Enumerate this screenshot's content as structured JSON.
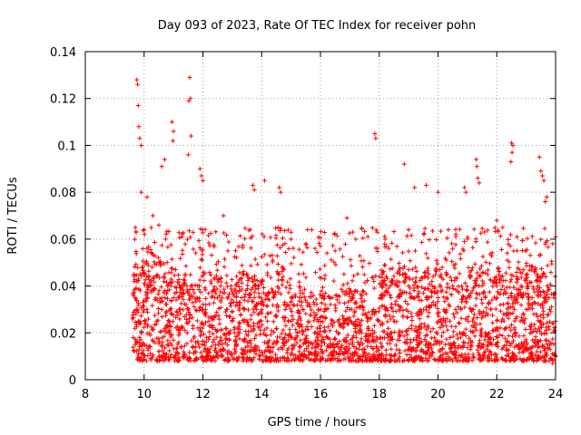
{
  "chart_data": {
    "type": "scatter",
    "title": "Day 093 of 2023, Rate Of TEC Index for receiver pohn",
    "xlabel": "GPS time / hours",
    "ylabel": "ROTI / TECUs",
    "xlim": [
      8,
      24
    ],
    "ylim": [
      0,
      0.14
    ],
    "x_ticks": [
      8,
      10,
      12,
      14,
      16,
      18,
      20,
      22,
      24
    ],
    "y_ticks": [
      0,
      0.02,
      0.04,
      0.06,
      0.08,
      0.1,
      0.12,
      0.14
    ],
    "x_tick_labels": [
      "8",
      "10",
      "12",
      "14",
      "16",
      "18",
      "20",
      "22",
      "24"
    ],
    "y_tick_labels": [
      "0",
      "0.02",
      "0.04",
      "0.06",
      "0.08",
      "0.1",
      "0.12",
      "0.14"
    ],
    "grid": true,
    "marker": "+",
    "color": "#ff0000",
    "series": [
      {
        "name": "ROTI",
        "note": "dense cloud of points from ~9.6 h to 24 h; values are approximations read from the axes",
        "points": [
          [
            9.75,
            0.128
          ],
          [
            9.78,
            0.126
          ],
          [
            9.8,
            0.117
          ],
          [
            9.85,
            0.103
          ],
          [
            9.9,
            0.1
          ],
          [
            9.82,
            0.108
          ],
          [
            11.55,
            0.129
          ],
          [
            11.52,
            0.119
          ],
          [
            11.58,
            0.12
          ],
          [
            11.6,
            0.104
          ],
          [
            11.5,
            0.096
          ],
          [
            10.95,
            0.11
          ],
          [
            11.0,
            0.106
          ],
          [
            10.98,
            0.102
          ],
          [
            10.7,
            0.094
          ],
          [
            10.6,
            0.091
          ],
          [
            17.85,
            0.105
          ],
          [
            17.88,
            0.103
          ],
          [
            18.85,
            0.092
          ],
          [
            22.5,
            0.101
          ],
          [
            22.55,
            0.1
          ],
          [
            22.52,
            0.097
          ],
          [
            22.48,
            0.093
          ],
          [
            23.45,
            0.095
          ],
          [
            21.3,
            0.094
          ],
          [
            21.32,
            0.091
          ],
          [
            21.35,
            0.086
          ],
          [
            21.4,
            0.084
          ],
          [
            11.9,
            0.09
          ],
          [
            11.95,
            0.087
          ],
          [
            12.0,
            0.085
          ],
          [
            14.1,
            0.085
          ],
          [
            13.7,
            0.083
          ],
          [
            13.75,
            0.081
          ],
          [
            14.6,
            0.082
          ],
          [
            14.65,
            0.08
          ],
          [
            19.6,
            0.083
          ],
          [
            19.2,
            0.082
          ],
          [
            20.0,
            0.08
          ],
          [
            20.9,
            0.082
          ],
          [
            20.95,
            0.08
          ],
          [
            23.5,
            0.089
          ],
          [
            23.55,
            0.087
          ],
          [
            23.6,
            0.085
          ],
          [
            23.7,
            0.078
          ],
          [
            23.65,
            0.076
          ],
          [
            12.7,
            0.07
          ],
          [
            16.9,
            0.069
          ],
          [
            17.1,
            0.063
          ],
          [
            17.2,
            0.06
          ],
          [
            18.2,
            0.06
          ],
          [
            24.0,
            0.061
          ],
          [
            23.9,
            0.058
          ],
          [
            21.0,
            0.06
          ],
          [
            22.0,
            0.068
          ],
          [
            22.2,
            0.065
          ],
          [
            15.0,
            0.06
          ],
          [
            15.5,
            0.058
          ],
          [
            16.0,
            0.057
          ],
          [
            16.5,
            0.055
          ],
          [
            19.0,
            0.064
          ],
          [
            9.7,
            0.065
          ],
          [
            9.9,
            0.08
          ],
          [
            10.1,
            0.078
          ],
          [
            10.3,
            0.07
          ],
          [
            10.5,
            0.066
          ],
          [
            9.65,
            0.045
          ],
          [
            9.7,
            0.035
          ],
          [
            9.75,
            0.03
          ],
          [
            9.8,
            0.025
          ],
          [
            9.9,
            0.02
          ],
          [
            10.0,
            0.045
          ],
          [
            10.2,
            0.04
          ],
          [
            10.4,
            0.035
          ],
          [
            10.6,
            0.03
          ],
          [
            10.8,
            0.04
          ],
          [
            11.0,
            0.035
          ],
          [
            11.2,
            0.03
          ],
          [
            11.4,
            0.045
          ],
          [
            11.6,
            0.04
          ],
          [
            11.8,
            0.035
          ],
          [
            12.0,
            0.03
          ],
          [
            12.2,
            0.025
          ],
          [
            12.4,
            0.035
          ],
          [
            12.6,
            0.04
          ],
          [
            12.8,
            0.03
          ],
          [
            13.0,
            0.025
          ],
          [
            13.2,
            0.02
          ],
          [
            13.4,
            0.03
          ],
          [
            13.6,
            0.035
          ],
          [
            13.8,
            0.04
          ],
          [
            14.0,
            0.03
          ],
          [
            14.2,
            0.025
          ],
          [
            14.4,
            0.035
          ],
          [
            14.6,
            0.045
          ],
          [
            14.8,
            0.03
          ],
          [
            15.0,
            0.025
          ],
          [
            15.2,
            0.02
          ],
          [
            15.4,
            0.03
          ],
          [
            15.6,
            0.025
          ],
          [
            15.8,
            0.02
          ],
          [
            16.0,
            0.025
          ],
          [
            16.2,
            0.03
          ],
          [
            16.4,
            0.035
          ],
          [
            16.6,
            0.025
          ],
          [
            16.8,
            0.045
          ],
          [
            17.0,
            0.03
          ],
          [
            17.2,
            0.025
          ],
          [
            17.4,
            0.02
          ],
          [
            17.6,
            0.025
          ],
          [
            17.8,
            0.03
          ],
          [
            18.0,
            0.025
          ],
          [
            18.2,
            0.03
          ],
          [
            18.4,
            0.035
          ],
          [
            18.6,
            0.04
          ],
          [
            18.8,
            0.045
          ],
          [
            19.0,
            0.04
          ],
          [
            19.2,
            0.035
          ],
          [
            19.4,
            0.03
          ],
          [
            19.6,
            0.035
          ],
          [
            19.8,
            0.04
          ],
          [
            20.0,
            0.035
          ],
          [
            20.2,
            0.03
          ],
          [
            20.4,
            0.025
          ],
          [
            20.6,
            0.03
          ],
          [
            20.8,
            0.04
          ],
          [
            21.0,
            0.035
          ],
          [
            21.2,
            0.03
          ],
          [
            21.4,
            0.04
          ],
          [
            21.6,
            0.035
          ],
          [
            21.8,
            0.03
          ],
          [
            22.0,
            0.035
          ],
          [
            22.2,
            0.04
          ],
          [
            22.4,
            0.035
          ],
          [
            22.6,
            0.03
          ],
          [
            22.8,
            0.025
          ],
          [
            23.0,
            0.03
          ],
          [
            23.2,
            0.035
          ],
          [
            23.4,
            0.04
          ],
          [
            23.6,
            0.035
          ],
          [
            23.8,
            0.03
          ],
          [
            24.0,
            0.025
          ],
          [
            9.7,
            0.015
          ],
          [
            10.5,
            0.012
          ],
          [
            12.5,
            0.01
          ],
          [
            14.5,
            0.008
          ],
          [
            16.5,
            0.009
          ],
          [
            18.5,
            0.01
          ],
          [
            20.5,
            0.008
          ],
          [
            22.5,
            0.009
          ],
          [
            23.9,
            0.007
          ]
        ]
      }
    ]
  }
}
